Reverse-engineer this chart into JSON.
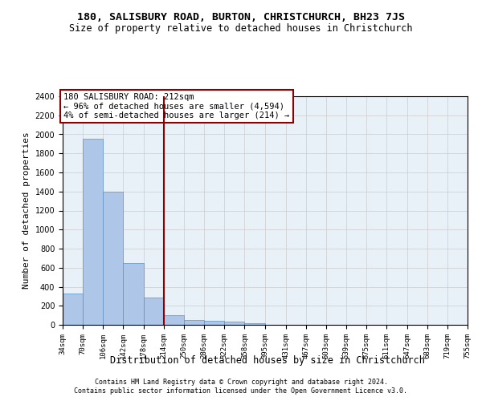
{
  "title1": "180, SALISBURY ROAD, BURTON, CHRISTCHURCH, BH23 7JS",
  "title2": "Size of property relative to detached houses in Christchurch",
  "xlabel": "Distribution of detached houses by size in Christchurch",
  "ylabel": "Number of detached properties",
  "bin_labels": [
    "34sqm",
    "70sqm",
    "106sqm",
    "142sqm",
    "178sqm",
    "214sqm",
    "250sqm",
    "286sqm",
    "322sqm",
    "358sqm",
    "395sqm",
    "431sqm",
    "467sqm",
    "503sqm",
    "539sqm",
    "575sqm",
    "611sqm",
    "647sqm",
    "683sqm",
    "719sqm",
    "755sqm"
  ],
  "bin_left_edges": [
    34,
    70,
    106,
    142,
    178,
    214,
    250,
    286,
    322,
    358,
    395,
    431,
    467,
    503,
    539,
    575,
    611,
    647,
    683,
    719
  ],
  "bin_width": 36,
  "bar_values": [
    330,
    1950,
    1400,
    650,
    285,
    105,
    50,
    45,
    35,
    20,
    0,
    0,
    0,
    0,
    0,
    0,
    0,
    0,
    0,
    0
  ],
  "bar_color": "#aec6e8",
  "bar_edge_color": "#5a90c8",
  "vline_x": 214,
  "vline_color": "#8b0000",
  "annotation_text": "180 SALISBURY ROAD: 212sqm\n← 96% of detached houses are smaller (4,594)\n4% of semi-detached houses are larger (214) →",
  "annotation_box_color": "#8b0000",
  "ylim": [
    0,
    2400
  ],
  "yticks": [
    0,
    200,
    400,
    600,
    800,
    1000,
    1200,
    1400,
    1600,
    1800,
    2000,
    2200,
    2400
  ],
  "grid_color": "#cccccc",
  "bg_color": "#e8f0f8",
  "footer1": "Contains HM Land Registry data © Crown copyright and database right 2024.",
  "footer2": "Contains public sector information licensed under the Open Government Licence v3.0."
}
